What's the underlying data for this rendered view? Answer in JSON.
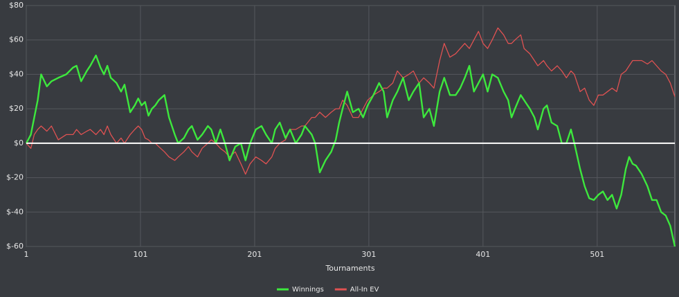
{
  "chart_data": {
    "type": "line",
    "xlabel": "Tournaments",
    "x": [
      1,
      5,
      8,
      11,
      14,
      19,
      23,
      29,
      36,
      42,
      45,
      49,
      54,
      57,
      62,
      66,
      69,
      72,
      75,
      80,
      84,
      87,
      92,
      96,
      99,
      102,
      105,
      108,
      111,
      114,
      117,
      122,
      126,
      131,
      134,
      139,
      143,
      146,
      151,
      155,
      160,
      163,
      167,
      171,
      175,
      179,
      184,
      189,
      193,
      197,
      202,
      207,
      211,
      216,
      219,
      223,
      228,
      232,
      237,
      242,
      245,
      251,
      254,
      258,
      263,
      268,
      272,
      275,
      278,
      282,
      287,
      292,
      296,
      300,
      305,
      310,
      314,
      317,
      322,
      326,
      331,
      336,
      340,
      345,
      349,
      354,
      358,
      363,
      367,
      372,
      377,
      381,
      385,
      389,
      393,
      397,
      401,
      405,
      409,
      414,
      419,
      423,
      426,
      429,
      434,
      437,
      442,
      446,
      449,
      454,
      457,
      461,
      466,
      470,
      474,
      478,
      481,
      486,
      490,
      494,
      498,
      502,
      506,
      510,
      514,
      518,
      522,
      526,
      529,
      532,
      535,
      540,
      545,
      549,
      553,
      557,
      561,
      565,
      569
    ],
    "series": [
      {
        "name": "Winnings",
        "color": "#3de83d",
        "values": [
          0,
          5,
          15,
          25,
          40,
          33,
          36,
          38,
          40,
          44,
          45,
          36,
          42,
          45,
          51,
          44,
          40,
          45,
          38,
          35,
          30,
          34,
          18,
          22,
          26,
          22,
          24,
          16,
          20,
          22,
          25,
          28,
          15,
          5,
          0,
          3,
          8,
          10,
          2,
          5,
          10,
          8,
          0,
          8,
          0,
          -10,
          -2,
          0,
          -10,
          0,
          8,
          10,
          5,
          0,
          8,
          12,
          3,
          8,
          0,
          5,
          10,
          5,
          0,
          -17,
          -10,
          -5,
          2,
          12,
          20,
          30,
          18,
          20,
          15,
          22,
          28,
          35,
          30,
          15,
          25,
          30,
          38,
          25,
          30,
          35,
          15,
          20,
          10,
          30,
          38,
          28,
          28,
          32,
          38,
          45,
          30,
          35,
          40,
          30,
          40,
          38,
          30,
          25,
          15,
          20,
          28,
          25,
          20,
          15,
          8,
          20,
          22,
          12,
          10,
          0,
          0,
          8,
          0,
          -15,
          -25,
          -32,
          -33,
          -30,
          -28,
          -33,
          -30,
          -38,
          -30,
          -15,
          -8,
          -12,
          -13,
          -18,
          -25,
          -33,
          -33,
          -40,
          -42,
          -48,
          -60
        ]
      },
      {
        "name": "All-In EV",
        "color": "#e05252",
        "values": [
          0,
          -3,
          5,
          8,
          10,
          7,
          10,
          2,
          5,
          5,
          8,
          5,
          7,
          8,
          5,
          8,
          5,
          10,
          5,
          0,
          3,
          0,
          5,
          8,
          10,
          8,
          3,
          2,
          0,
          0,
          -2,
          -5,
          -8,
          -10,
          -8,
          -5,
          -2,
          -5,
          -8,
          -3,
          0,
          2,
          0,
          -3,
          -5,
          -8,
          -5,
          -12,
          -18,
          -12,
          -8,
          -10,
          -12,
          -8,
          -3,
          0,
          2,
          8,
          8,
          10,
          10,
          15,
          15,
          18,
          15,
          18,
          20,
          20,
          25,
          22,
          15,
          15,
          20,
          25,
          28,
          30,
          32,
          32,
          35,
          42,
          38,
          40,
          42,
          35,
          38,
          35,
          32,
          48,
          58,
          50,
          52,
          55,
          58,
          55,
          60,
          65,
          58,
          55,
          60,
          67,
          63,
          58,
          58,
          60,
          63,
          55,
          52,
          48,
          45,
          48,
          45,
          42,
          45,
          42,
          38,
          42,
          40,
          30,
          32,
          25,
          22,
          28,
          28,
          30,
          32,
          30,
          40,
          42,
          45,
          48,
          48,
          48,
          46,
          48,
          45,
          42,
          40,
          35,
          27
        ]
      }
    ],
    "xlim": [
      1,
      569
    ],
    "xticks": [
      1,
      101,
      201,
      301,
      401,
      501
    ],
    "ylim": [
      -60,
      80
    ],
    "yticks": [
      {
        "value": -60,
        "label": "$-60"
      },
      {
        "value": -40,
        "label": "$-40"
      },
      {
        "value": -20,
        "label": "$-20"
      },
      {
        "value": 0,
        "label": "$0"
      },
      {
        "value": 20,
        "label": "$20"
      },
      {
        "value": 40,
        "label": "$40"
      },
      {
        "value": 60,
        "label": "$60"
      },
      {
        "value": 80,
        "label": "$80"
      }
    ],
    "grid": true,
    "legend": "bottom"
  }
}
